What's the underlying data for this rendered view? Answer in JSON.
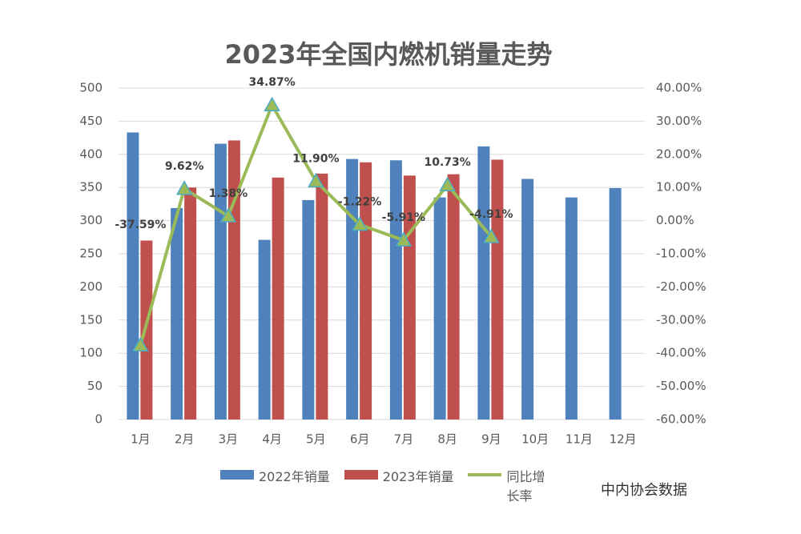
{
  "chart_data": {
    "type": "bar_line",
    "title": "2023年全国内燃机销量走势",
    "categories": [
      "1月",
      "2月",
      "3月",
      "4月",
      "5月",
      "6月",
      "7月",
      "8月",
      "9月",
      "10月",
      "11月",
      "12月"
    ],
    "series": [
      {
        "name": "2022年销量",
        "color": "#4f81bd",
        "type": "bar",
        "values": [
          433,
          319,
          416,
          271,
          331,
          393,
          391,
          335,
          412,
          363,
          335,
          349
        ]
      },
      {
        "name": "2023年销量",
        "color": "#c0504d",
        "type": "bar",
        "values": [
          270,
          350,
          421,
          365,
          371,
          388,
          368,
          370,
          392,
          null,
          null,
          null
        ]
      },
      {
        "name": "同比增长率",
        "color": "#9bbb59",
        "type": "line",
        "axis": "y2",
        "values": [
          -37.59,
          9.62,
          1.38,
          34.87,
          11.9,
          -1.22,
          -5.91,
          10.73,
          -4.91,
          null,
          null,
          null
        ],
        "value_labels": [
          "-37.59%",
          "9.62%",
          "1.38%",
          "34.87%",
          "11.90%",
          "-1.22%",
          "-5.91%",
          "10.73%",
          "-4.91%",
          null,
          null,
          null
        ]
      }
    ],
    "ylim": [
      0,
      500
    ],
    "yticks": [
      0,
      50,
      100,
      150,
      200,
      250,
      300,
      350,
      400,
      450,
      500
    ],
    "y2lim": [
      -60,
      40
    ],
    "y2ticks": [
      {
        "value": -60,
        "label": "-60.00%"
      },
      {
        "value": -50,
        "label": "-50.00%"
      },
      {
        "value": -40,
        "label": "-40.00%"
      },
      {
        "value": -30,
        "label": "-30.00%"
      },
      {
        "value": -20,
        "label": "-20.00%"
      },
      {
        "value": -10,
        "label": "-10.00%"
      },
      {
        "value": 0,
        "label": "0.00%"
      },
      {
        "value": 10,
        "label": "10.00%"
      },
      {
        "value": 20,
        "label": "20.00%"
      },
      {
        "value": 30,
        "label": "30.00%"
      },
      {
        "value": 40,
        "label": "40.00%"
      }
    ],
    "grid": true,
    "legend": "bottom",
    "watermark": "中内协会数据"
  }
}
